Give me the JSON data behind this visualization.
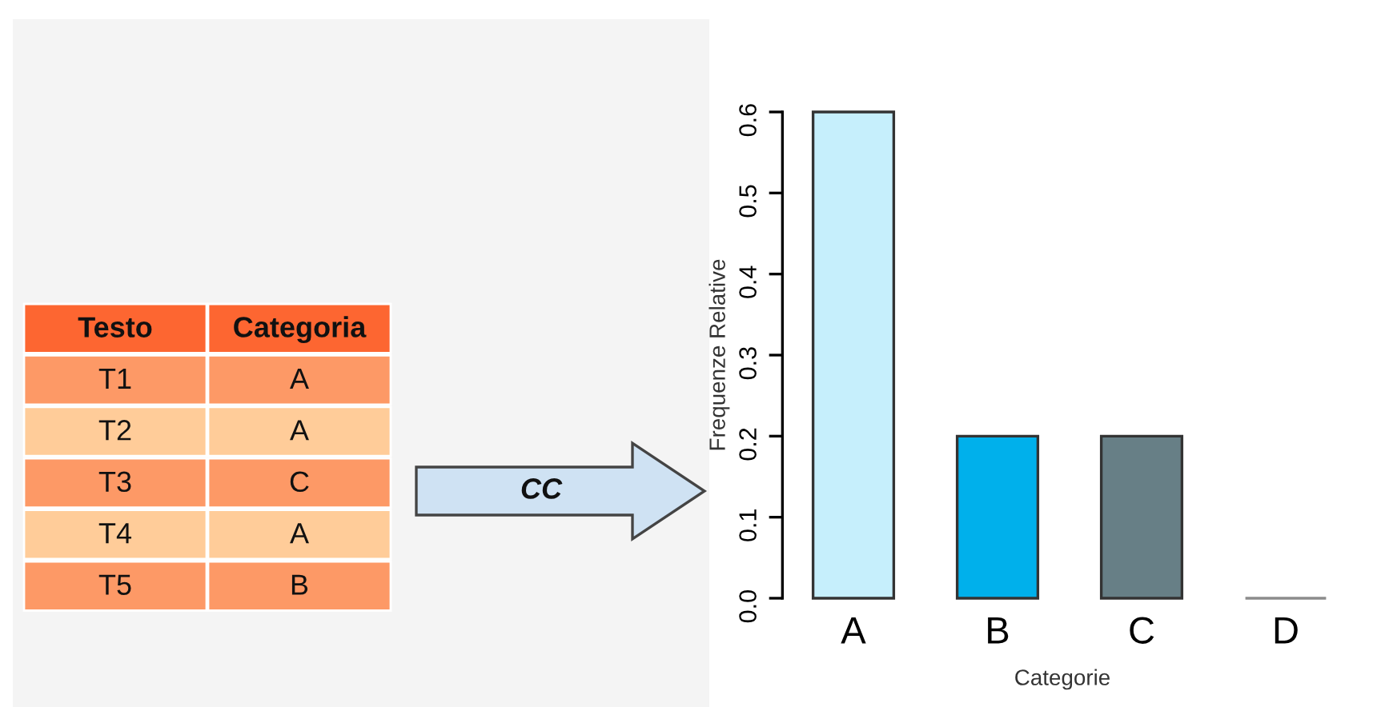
{
  "chart_data": [
    {
      "type": "other",
      "annotations": [
        "Testo",
        "Categoria",
        "T1",
        "A",
        "T2",
        "A",
        "T3",
        "C",
        "T4",
        "A",
        "T5",
        "B",
        "CC"
      ]
    },
    {
      "type": "bar",
      "categories": [
        "A",
        "B",
        "C",
        "D"
      ],
      "values": [
        0.6,
        0.2,
        0.2,
        0.0
      ],
      "colors": [
        "#c6effc",
        "#00b0eb",
        "#677f86",
        "#8c8c8c"
      ],
      "xlabel": "Categorie",
      "ylabel": "Frequenze Relative",
      "ylim": [
        0,
        0.6
      ],
      "yticks": [
        {
          "value": 0,
          "label": "0.0"
        },
        0.1,
        0.2,
        0.3,
        0.4,
        0.5,
        0.6
      ],
      "grid": false,
      "legend": false
    }
  ]
}
